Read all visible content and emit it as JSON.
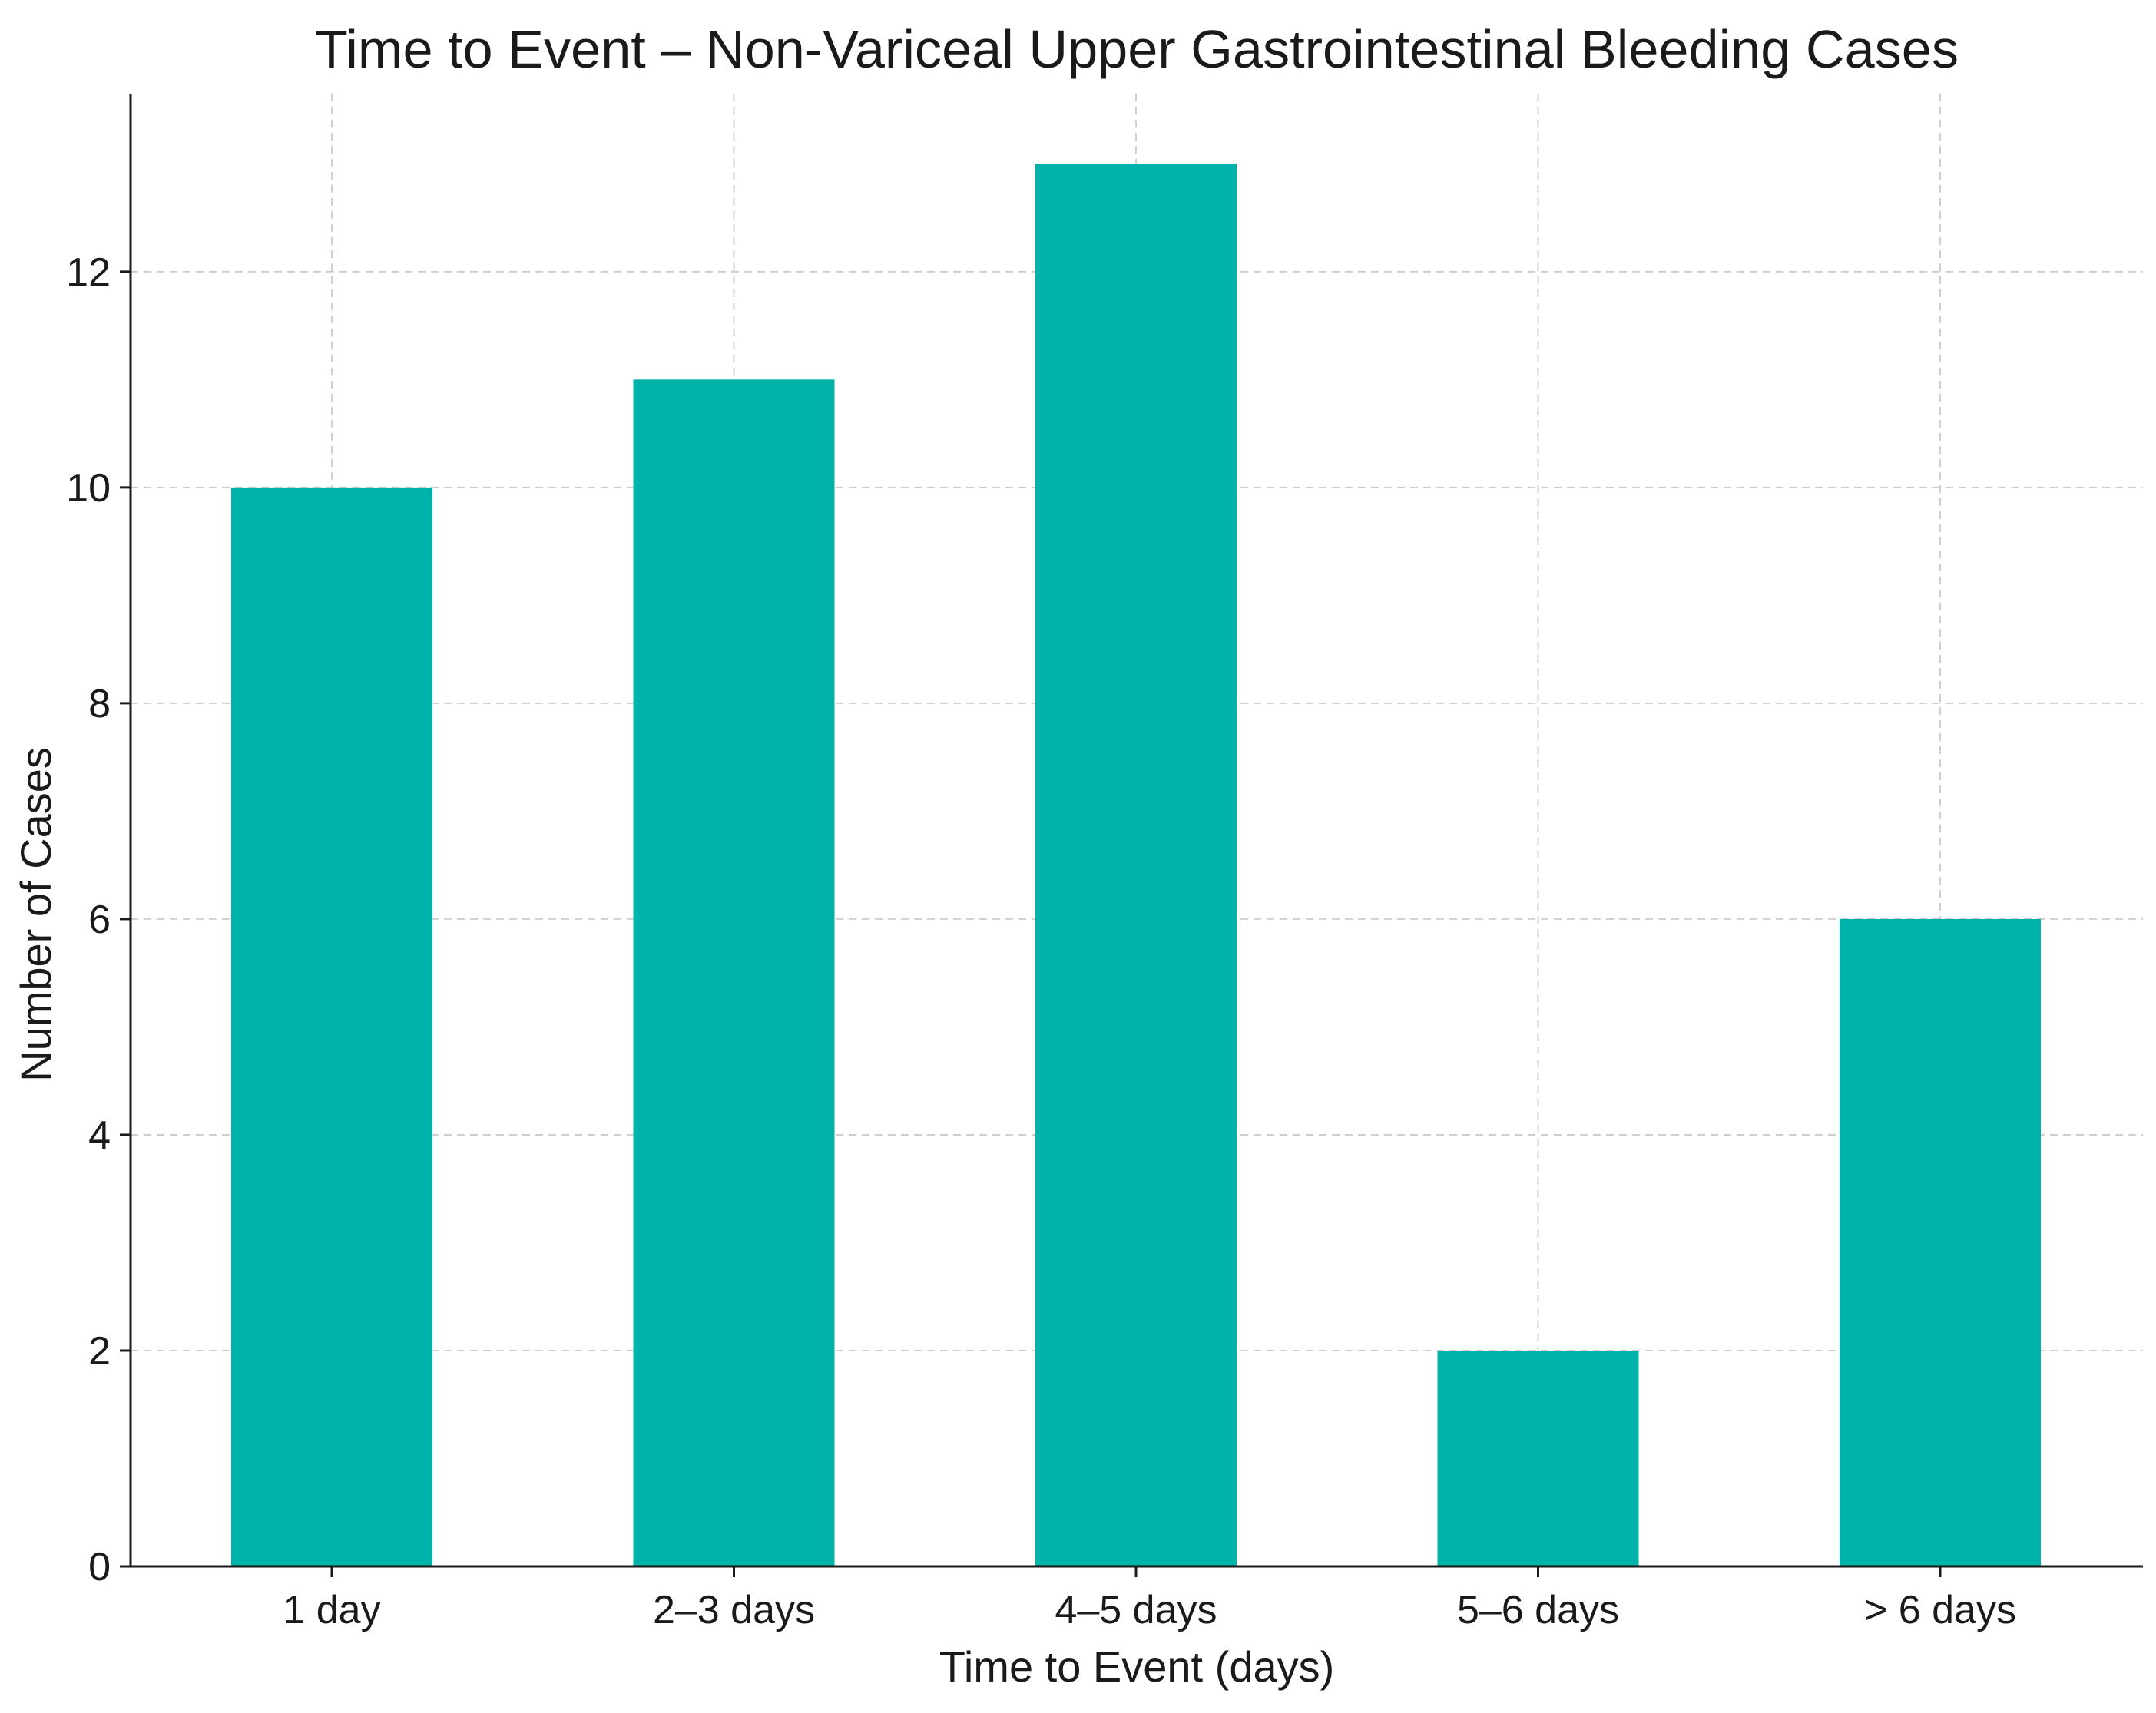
{
  "chart_data": {
    "type": "bar",
    "title": "Time to Event – Non-Variceal Upper Gastrointestinal Bleeding Cases",
    "xlabel": "Time to Event (days)",
    "ylabel": "Number of Cases",
    "categories": [
      "1 day",
      "2–3 days",
      "4–5 days",
      "5–6 days",
      "> 6 days"
    ],
    "values": [
      10,
      11,
      13,
      2,
      6
    ],
    "ylim": [
      0,
      13.65
    ],
    "yticks": [
      0,
      2,
      4,
      6,
      8,
      10,
      12
    ],
    "grid": true,
    "bar_color": "#00b3aa"
  }
}
